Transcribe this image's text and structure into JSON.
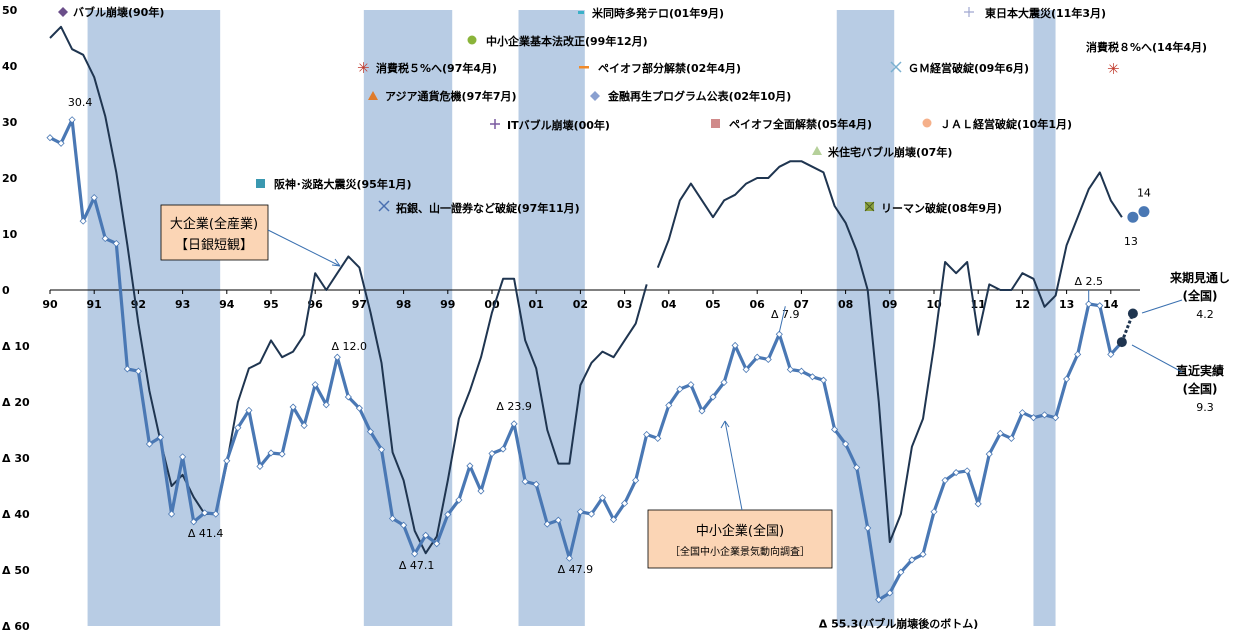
{
  "chart_data": {
    "type": "line",
    "ylim": [
      -60,
      50
    ],
    "yticks": [
      {
        "v": 50,
        "label": "50"
      },
      {
        "v": 40,
        "label": "40"
      },
      {
        "v": 30,
        "label": "30"
      },
      {
        "v": 20,
        "label": "20"
      },
      {
        "v": 10,
        "label": "10"
      },
      {
        "v": 0,
        "label": "0"
      },
      {
        "v": -10,
        "label": "Δ 10"
      },
      {
        "v": -20,
        "label": "Δ 20"
      },
      {
        "v": -30,
        "label": "Δ 30"
      },
      {
        "v": -40,
        "label": "Δ 40"
      },
      {
        "v": -50,
        "label": "Δ 50"
      },
      {
        "v": -60,
        "label": "Δ 60"
      }
    ],
    "xlim": [
      1990.0,
      2015.5
    ],
    "xticks": [
      {
        "v": 1990,
        "label": "90"
      },
      {
        "v": 1991,
        "label": "91"
      },
      {
        "v": 1992,
        "label": "92"
      },
      {
        "v": 1993,
        "label": "93"
      },
      {
        "v": 1994,
        "label": "94"
      },
      {
        "v": 1995,
        "label": "95"
      },
      {
        "v": 1996,
        "label": "96"
      },
      {
        "v": 1997,
        "label": "97"
      },
      {
        "v": 1998,
        "label": "98"
      },
      {
        "v": 1999,
        "label": "99"
      },
      {
        "v": 2000,
        "label": "00"
      },
      {
        "v": 2001,
        "label": "01"
      },
      {
        "v": 2002,
        "label": "02"
      },
      {
        "v": 2003,
        "label": "03"
      },
      {
        "v": 2004,
        "label": "04"
      },
      {
        "v": 2005,
        "label": "05"
      },
      {
        "v": 2006,
        "label": "06"
      },
      {
        "v": 2007,
        "label": "07"
      },
      {
        "v": 2008,
        "label": "08"
      },
      {
        "v": 2009,
        "label": "09"
      },
      {
        "v": 2010,
        "label": "10"
      },
      {
        "v": 2011,
        "label": "11"
      },
      {
        "v": 2012,
        "label": "12"
      },
      {
        "v": 2013,
        "label": "13"
      },
      {
        "v": 2014,
        "label": "14"
      }
    ],
    "recessions": [
      [
        1990.85,
        1993.85
      ],
      [
        1997.1,
        1999.1
      ],
      [
        2000.6,
        2002.1
      ],
      [
        2007.8,
        2009.1
      ],
      [
        2012.25,
        2012.75
      ]
    ],
    "series": [
      {
        "name": "大企業(全産業)【日銀短観】",
        "color": "#1f3550",
        "points": [
          [
            1990.0,
            45
          ],
          [
            1990.25,
            47
          ],
          [
            1990.5,
            43
          ],
          [
            1990.75,
            42
          ],
          [
            1991.0,
            38
          ],
          [
            1991.25,
            31
          ],
          [
            1991.5,
            21
          ],
          [
            1991.75,
            8
          ],
          [
            1992.0,
            -6
          ],
          [
            1992.25,
            -18
          ],
          [
            1992.5,
            -27
          ],
          [
            1992.75,
            -35
          ],
          [
            1993.0,
            -33
          ],
          [
            1993.25,
            -37
          ],
          [
            1993.5,
            -40
          ],
          [
            1993.75,
            -40
          ],
          [
            1994.0,
            -31
          ],
          [
            1994.25,
            -20
          ],
          [
            1994.5,
            -14
          ],
          [
            1994.75,
            -13
          ],
          [
            1995.0,
            -9
          ],
          [
            1995.25,
            -12
          ],
          [
            1995.5,
            -11
          ],
          [
            1995.75,
            -8
          ],
          [
            1996.0,
            3
          ],
          [
            1996.25,
            0
          ],
          [
            1996.5,
            3
          ],
          [
            1996.75,
            6
          ],
          [
            1997.0,
            4
          ],
          [
            1997.25,
            -4
          ],
          [
            1997.5,
            -13
          ],
          [
            1997.75,
            -29
          ],
          [
            1998.0,
            -34
          ],
          [
            1998.25,
            -43
          ],
          [
            1998.5,
            -47
          ],
          [
            1998.75,
            -44
          ],
          [
            1999.0,
            -34
          ],
          [
            1999.25,
            -23
          ],
          [
            1999.5,
            -18
          ],
          [
            1999.75,
            -12
          ],
          [
            2000.0,
            -4
          ],
          [
            2000.25,
            2
          ],
          [
            2000.5,
            2
          ],
          [
            2000.75,
            -9
          ],
          [
            2001.0,
            -14
          ],
          [
            2001.25,
            -25
          ],
          [
            2001.5,
            -31
          ],
          [
            2001.75,
            -31
          ],
          [
            2002.0,
            -17
          ],
          [
            2002.25,
            -13
          ],
          [
            2002.5,
            -11
          ],
          [
            2002.75,
            -12
          ],
          [
            2003.0,
            -9
          ],
          [
            2003.25,
            -6
          ],
          [
            2003.5,
            1
          ],
          [
            null,
            null
          ],
          [
            2003.75,
            4
          ],
          [
            2004.0,
            9
          ],
          [
            2004.25,
            16
          ],
          [
            2004.5,
            19
          ],
          [
            2004.75,
            16
          ],
          [
            2005.0,
            13
          ],
          [
            2005.25,
            16
          ],
          [
            2005.5,
            17
          ],
          [
            2005.75,
            19
          ],
          [
            2006.0,
            20
          ],
          [
            2006.25,
            20
          ],
          [
            2006.5,
            22
          ],
          [
            2006.75,
            23
          ],
          [
            2007.0,
            23
          ],
          [
            2007.25,
            22
          ],
          [
            2007.5,
            21
          ],
          [
            2007.75,
            15
          ],
          [
            2008.0,
            12
          ],
          [
            2008.25,
            7
          ],
          [
            2008.5,
            0
          ],
          [
            2008.75,
            -20
          ],
          [
            2009.0,
            -45
          ],
          [
            2009.25,
            -40
          ],
          [
            2009.5,
            -28
          ],
          [
            2009.75,
            -23
          ],
          [
            2010.0,
            -10
          ],
          [
            2010.25,
            5
          ],
          [
            2010.5,
            3
          ],
          [
            2010.75,
            5
          ],
          [
            2011.0,
            -8
          ],
          [
            2011.25,
            1
          ],
          [
            2011.5,
            0
          ],
          [
            2011.75,
            0
          ],
          [
            2012.0,
            3
          ],
          [
            2012.25,
            2
          ],
          [
            2012.5,
            -3
          ],
          [
            2012.75,
            -1
          ],
          [
            2013.0,
            8
          ],
          [
            2013.25,
            13
          ],
          [
            2013.5,
            18
          ],
          [
            2013.75,
            21
          ],
          [
            2014.0,
            16
          ],
          [
            2014.25,
            13
          ]
        ]
      },
      {
        "name": "中小企業(全国)［全国中小企業景気動向調査］",
        "color": "#4a78b4",
        "points": [
          [
            1990.0,
            27.2
          ],
          [
            1990.25,
            26.2
          ],
          [
            1990.5,
            30.4
          ],
          [
            1990.75,
            12.3
          ],
          [
            1991.0,
            16.5
          ],
          [
            1991.25,
            9.2
          ],
          [
            1991.5,
            8.3
          ],
          [
            1991.75,
            -14.1
          ],
          [
            1992.0,
            -14.5
          ],
          [
            1992.25,
            -27.5
          ],
          [
            1992.5,
            -26.3
          ],
          [
            1992.75,
            -40.0
          ],
          [
            1993.0,
            -29.8
          ],
          [
            1993.25,
            -41.4
          ],
          [
            1993.5,
            -39.8
          ],
          [
            1993.75,
            -40.0
          ],
          [
            1994.0,
            -30.5
          ],
          [
            1994.25,
            -24.6
          ],
          [
            1994.5,
            -21.5
          ],
          [
            1994.75,
            -31.5
          ],
          [
            1995.0,
            -29.1
          ],
          [
            1995.25,
            -29.3
          ],
          [
            1995.5,
            -20.9
          ],
          [
            1995.75,
            -24.2
          ],
          [
            1996.0,
            -16.9
          ],
          [
            1996.25,
            -20.5
          ],
          [
            1996.5,
            -12.0
          ],
          [
            1996.75,
            -19.1
          ],
          [
            1997.0,
            -21.1
          ],
          [
            1997.25,
            -25.3
          ],
          [
            1997.5,
            -28.5
          ],
          [
            1997.75,
            -40.8
          ],
          [
            1998.0,
            -42.0
          ],
          [
            1998.25,
            -47.1
          ],
          [
            1998.5,
            -43.8
          ],
          [
            1998.75,
            -45.3
          ],
          [
            1999.0,
            -40.1
          ],
          [
            1999.25,
            -37.5
          ],
          [
            1999.5,
            -31.4
          ],
          [
            1999.75,
            -35.9
          ],
          [
            2000.0,
            -29.2
          ],
          [
            2000.25,
            -28.4
          ],
          [
            2000.5,
            -23.9
          ],
          [
            2000.75,
            -34.2
          ],
          [
            2001.0,
            -34.7
          ],
          [
            2001.25,
            -41.8
          ],
          [
            2001.5,
            -41.1
          ],
          [
            2001.75,
            -47.9
          ],
          [
            2002.0,
            -39.6
          ],
          [
            2002.25,
            -40.0
          ],
          [
            2002.5,
            -37.1
          ],
          [
            2002.75,
            -41.0
          ],
          [
            2003.0,
            -38.1
          ],
          [
            2003.25,
            -34.0
          ],
          [
            2003.5,
            -25.8
          ],
          [
            2003.75,
            -26.5
          ],
          [
            2004.0,
            -20.6
          ],
          [
            2004.25,
            -17.7
          ],
          [
            2004.5,
            -16.9
          ],
          [
            2004.75,
            -21.6
          ],
          [
            2005.0,
            -19.1
          ],
          [
            2005.25,
            -16.5
          ],
          [
            2005.5,
            -9.9
          ],
          [
            2005.75,
            -14.2
          ],
          [
            2006.0,
            -12.0
          ],
          [
            2006.25,
            -12.4
          ],
          [
            2006.5,
            -7.9
          ],
          [
            2006.75,
            -14.2
          ],
          [
            2007.0,
            -14.5
          ],
          [
            2007.25,
            -15.5
          ],
          [
            2007.5,
            -16.1
          ],
          [
            2007.75,
            -24.9
          ],
          [
            2008.0,
            -27.5
          ],
          [
            2008.25,
            -31.7
          ],
          [
            2008.5,
            -42.5
          ],
          [
            2008.75,
            -55.3
          ],
          [
            2009.0,
            -54.1
          ],
          [
            2009.25,
            -50.4
          ],
          [
            2009.5,
            -48.2
          ],
          [
            2009.75,
            -47.2
          ],
          [
            2010.0,
            -39.6
          ],
          [
            2010.25,
            -34.0
          ],
          [
            2010.5,
            -32.6
          ],
          [
            2010.75,
            -32.3
          ],
          [
            2011.0,
            -38.2
          ],
          [
            2011.25,
            -29.3
          ],
          [
            2011.5,
            -25.6
          ],
          [
            2011.75,
            -26.5
          ],
          [
            2012.0,
            -21.9
          ],
          [
            2012.25,
            -22.8
          ],
          [
            2012.5,
            -22.3
          ],
          [
            2012.75,
            -22.8
          ],
          [
            2013.0,
            -15.9
          ],
          [
            2013.25,
            -11.5
          ],
          [
            2013.5,
            -2.5
          ],
          [
            2013.75,
            -2.8
          ],
          [
            2014.0,
            -11.5
          ],
          [
            2014.25,
            -9.3
          ]
        ]
      }
    ],
    "large_forecast": {
      "values": [
        13,
        14
      ],
      "labels": [
        "13",
        "14"
      ]
    },
    "small_forecast": {
      "value": -4.2
    },
    "data_labels": [
      {
        "text": "30.4",
        "x": 1990.5,
        "y": 30.4
      },
      {
        "text": "Δ 41.4",
        "x": 1993.25,
        "y": -41.4
      },
      {
        "text": "Δ 12.0",
        "x": 1996.5,
        "y": -12.0
      },
      {
        "text": "Δ 47.1",
        "x": 1998.25,
        "y": -47.1
      },
      {
        "text": "Δ 23.9",
        "x": 2000.5,
        "y": -23.9
      },
      {
        "text": "Δ 47.9",
        "x": 2001.75,
        "y": -47.9
      },
      {
        "text": "Δ 7.9",
        "x": 2006.5,
        "y": -7.9
      },
      {
        "text": "Δ 55.3(バブル崩壊後のボトム)",
        "x": 2008.75,
        "y": -55.3
      },
      {
        "text": "Δ 2.5",
        "x": 2013.5,
        "y": -2.5
      }
    ],
    "series_boxes": [
      {
        "line1": "大企業(全産業)",
        "line2": "【日銀短観】",
        "fill": "#fbd5b5"
      },
      {
        "line1": "中小企業(全国)",
        "line2": "［全国中小企業景気動向調査］",
        "fill": "#fbd5b5"
      }
    ],
    "right_labels": {
      "forecast_title": "来期見通し",
      "forecast_sub": "(全国)",
      "forecast_value": "4.2",
      "actual_title": "直近実績",
      "actual_sub": "(全国)",
      "actual_value": "9.3"
    },
    "events": [
      {
        "text": "バブル崩壊(90年)",
        "marker": "diamond",
        "color": "#6b4e8a"
      },
      {
        "text": "阪神･淡路大震災(95年1月)",
        "marker": "square",
        "color": "#3a98b0"
      },
      {
        "text": "消費税５%へ(97年4月)",
        "marker": "star",
        "color": "#c0392b"
      },
      {
        "text": "アジア通貨危機(97年7月)",
        "marker": "triangle",
        "color": "#e07b2a"
      },
      {
        "text": "拓銀、山一證券など破綻(97年11月)",
        "marker": "x",
        "color": "#4a6fb0"
      },
      {
        "text": "ITバブル崩壊(00年)",
        "marker": "plus",
        "color": "#7a5aa0"
      },
      {
        "text": "米同時多発テロ(01年9月)",
        "marker": "dash",
        "color": "#3ab0c8"
      },
      {
        "text": "中小企業基本法改正(99年12月)",
        "marker": "circle",
        "color": "#8ab43a"
      },
      {
        "text": "ペイオフ部分解禁(02年4月)",
        "marker": "dash",
        "color": "#f08a2a"
      },
      {
        "text": "金融再生プログラム公表(02年10月)",
        "marker": "diamond",
        "color": "#8aa0d0"
      },
      {
        "text": "ペイオフ全面解禁(05年4月)",
        "marker": "square",
        "color": "#d08a8a"
      },
      {
        "text": "米住宅バブル崩壊(07年)",
        "marker": "triangle",
        "color": "#b5d09a"
      },
      {
        "text": "リーマン破綻(08年9月)",
        "marker": "xsquare",
        "color": "#8aa040"
      },
      {
        "text": "ＧＭ経営破綻(09年6月)",
        "marker": "x",
        "color": "#7ab0d0"
      },
      {
        "text": "ＪＡＬ経営破綻(10年1月)",
        "marker": "circle",
        "color": "#f5b08a"
      },
      {
        "text": "東日本大震災(11年3月)",
        "marker": "plus",
        "color": "#a0a8d0"
      },
      {
        "text": "消費税８%へ(14年4月)",
        "marker": "",
        "color": "#000000"
      }
    ]
  }
}
